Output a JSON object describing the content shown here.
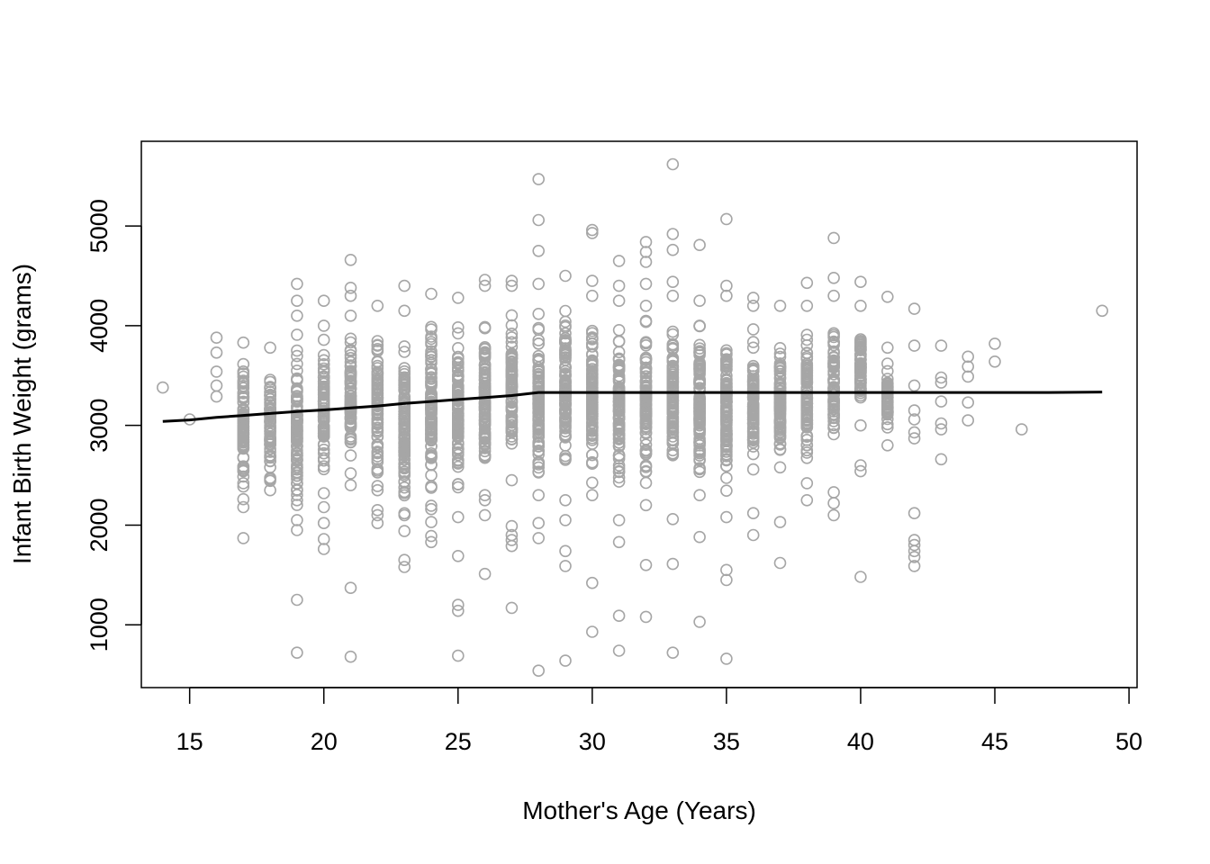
{
  "chart_data": {
    "type": "scatter",
    "title": "",
    "xlabel": "Mother's Age (Years)",
    "ylabel": "Infant Birth Weight (grams)",
    "xlim": [
      13.2,
      50.3
    ],
    "ylim": [
      370,
      5850
    ],
    "x_ticks": [
      15,
      20,
      25,
      30,
      35,
      40,
      45,
      50
    ],
    "y_ticks": [
      1000,
      2000,
      3000,
      4000,
      5000
    ],
    "point_style": "open-circle",
    "point_color": "#a6a6a6",
    "line_color": "#000000",
    "grid": false,
    "legend": "none",
    "age_columns": [
      {
        "age": 14,
        "range": null,
        "points": [
          3380
        ]
      },
      {
        "age": 15,
        "range": null,
        "points": [
          3060
        ]
      },
      {
        "age": 16,
        "range": null,
        "points": [
          3290,
          3400,
          3540,
          3730,
          3880
        ]
      },
      {
        "age": 17,
        "range": [
          2180,
          3830
        ],
        "points": [
          1870,
          2180,
          2260,
          2420,
          2540,
          2680,
          3120,
          3420,
          3520,
          3830
        ]
      },
      {
        "age": 18,
        "range": [
          2350,
          3780
        ],
        "points": [
          2350,
          2460,
          2580,
          2700,
          3780
        ]
      },
      {
        "age": 19,
        "range": [
          1950,
          4000
        ],
        "points": [
          720,
          1250,
          1950,
          2050,
          2250,
          2420,
          3750,
          3910,
          4100,
          4250,
          4420
        ]
      },
      {
        "age": 20,
        "range": [
          2320,
          4000
        ],
        "points": [
          1760,
          1860,
          2020,
          2180,
          2320,
          4000,
          4250
        ]
      },
      {
        "age": 21,
        "range": [
          2400,
          4100
        ],
        "points": [
          680,
          1370,
          2400,
          2520,
          4100,
          4300,
          4380,
          4660
        ]
      },
      {
        "age": 22,
        "range": [
          2150,
          4200
        ],
        "points": [
          2020,
          2100,
          2150,
          2350,
          4200
        ]
      },
      {
        "age": 23,
        "range": [
          1900,
          4150
        ],
        "points": [
          1580,
          1650,
          1940,
          2100,
          2320,
          4150,
          4400
        ]
      },
      {
        "age": 24,
        "range": [
          2000,
          4320
        ],
        "points": [
          1830,
          1890,
          2030,
          2160,
          2500,
          4320
        ]
      },
      {
        "age": 25,
        "range": [
          2080,
          4200
        ],
        "points": [
          690,
          1140,
          1200,
          1690,
          2080,
          2380,
          4280
        ]
      },
      {
        "age": 26,
        "range": [
          2200,
          4400
        ],
        "points": [
          1510,
          2100,
          2250,
          2300,
          4400,
          4460
        ]
      },
      {
        "age": 27,
        "range": [
          2450,
          4400
        ],
        "points": [
          1170,
          1790,
          1850,
          1900,
          1990,
          2450,
          4400,
          4450
        ]
      },
      {
        "age": 28,
        "range": [
          2050,
          4420
        ],
        "points": [
          540,
          1870,
          2020,
          2300,
          4420,
          4750,
          5060,
          5470
        ]
      },
      {
        "age": 29,
        "range": [
          2250,
          4500
        ],
        "points": [
          640,
          1590,
          1740,
          2050,
          2250,
          4500
        ]
      },
      {
        "age": 30,
        "range": [
          2300,
          4300
        ],
        "points": [
          930,
          1420,
          2300,
          4300,
          4450,
          4930,
          4960
        ]
      },
      {
        "age": 31,
        "range": [
          2050,
          4250
        ],
        "points": [
          740,
          1090,
          1830,
          2050,
          4250,
          4400,
          4650
        ]
      },
      {
        "age": 32,
        "range": [
          2200,
          4200
        ],
        "points": [
          1080,
          1600,
          2200,
          4200,
          4420,
          4640,
          4740,
          4840
        ]
      },
      {
        "age": 33,
        "range": [
          2250,
          4300
        ],
        "points": [
          720,
          1610,
          2060,
          4300,
          4440,
          4760,
          4920,
          5620
        ]
      },
      {
        "age": 34,
        "range": [
          2200,
          4250
        ],
        "points": [
          1030,
          1880,
          2300,
          4250,
          4810
        ]
      },
      {
        "age": 35,
        "range": [
          2100,
          4300
        ],
        "points": [
          660,
          1450,
          1550,
          2080,
          4300,
          4400,
          5070
        ]
      },
      {
        "age": 36,
        "range": [
          2250,
          4200
        ],
        "points": [
          1900,
          2120,
          4200,
          4280
        ]
      },
      {
        "age": 37,
        "range": [
          2250,
          4200
        ],
        "points": [
          1620,
          2030,
          4200
        ]
      },
      {
        "age": 38,
        "range": [
          2350,
          4200
        ],
        "points": [
          2250,
          2420,
          4200,
          4430
        ]
      },
      {
        "age": 39,
        "range": [
          2700,
          4150
        ],
        "points": [
          2100,
          2220,
          2330,
          4300,
          4480,
          4880
        ]
      },
      {
        "age": 40,
        "range": [
          3000,
          4200
        ],
        "points": [
          1480,
          2540,
          2600,
          3000,
          4200,
          4440
        ]
      },
      {
        "age": 41,
        "range": [
          2800,
          3780
        ],
        "points": [
          2800,
          2980,
          3120,
          3280,
          3400,
          3620,
          3780,
          4290
        ]
      },
      {
        "age": 42,
        "range": null,
        "points": [
          1590,
          1680,
          1740,
          1800,
          1850,
          2120,
          2870,
          2930,
          3060,
          3150,
          3400,
          3800,
          4170
        ]
      },
      {
        "age": 43,
        "range": null,
        "points": [
          2660,
          2960,
          3020,
          3240,
          3430,
          3480,
          3800
        ]
      },
      {
        "age": 44,
        "range": null,
        "points": [
          3050,
          3230,
          3490,
          3590,
          3690
        ]
      },
      {
        "age": 45,
        "range": null,
        "points": [
          3640,
          3820
        ]
      },
      {
        "age": 46,
        "range": null,
        "points": [
          2960
        ]
      },
      {
        "age": 49,
        "range": null,
        "points": [
          4150
        ]
      }
    ],
    "trend_line": {
      "x": [
        14,
        15,
        16,
        17,
        18,
        19,
        20,
        21,
        22,
        23,
        24,
        25,
        26,
        27,
        28,
        30,
        35,
        40,
        45,
        47,
        49
      ],
      "y": [
        3040,
        3055,
        3080,
        3100,
        3120,
        3140,
        3155,
        3175,
        3195,
        3220,
        3240,
        3260,
        3280,
        3300,
        3330,
        3330,
        3330,
        3330,
        3330,
        3330,
        3335
      ]
    }
  }
}
